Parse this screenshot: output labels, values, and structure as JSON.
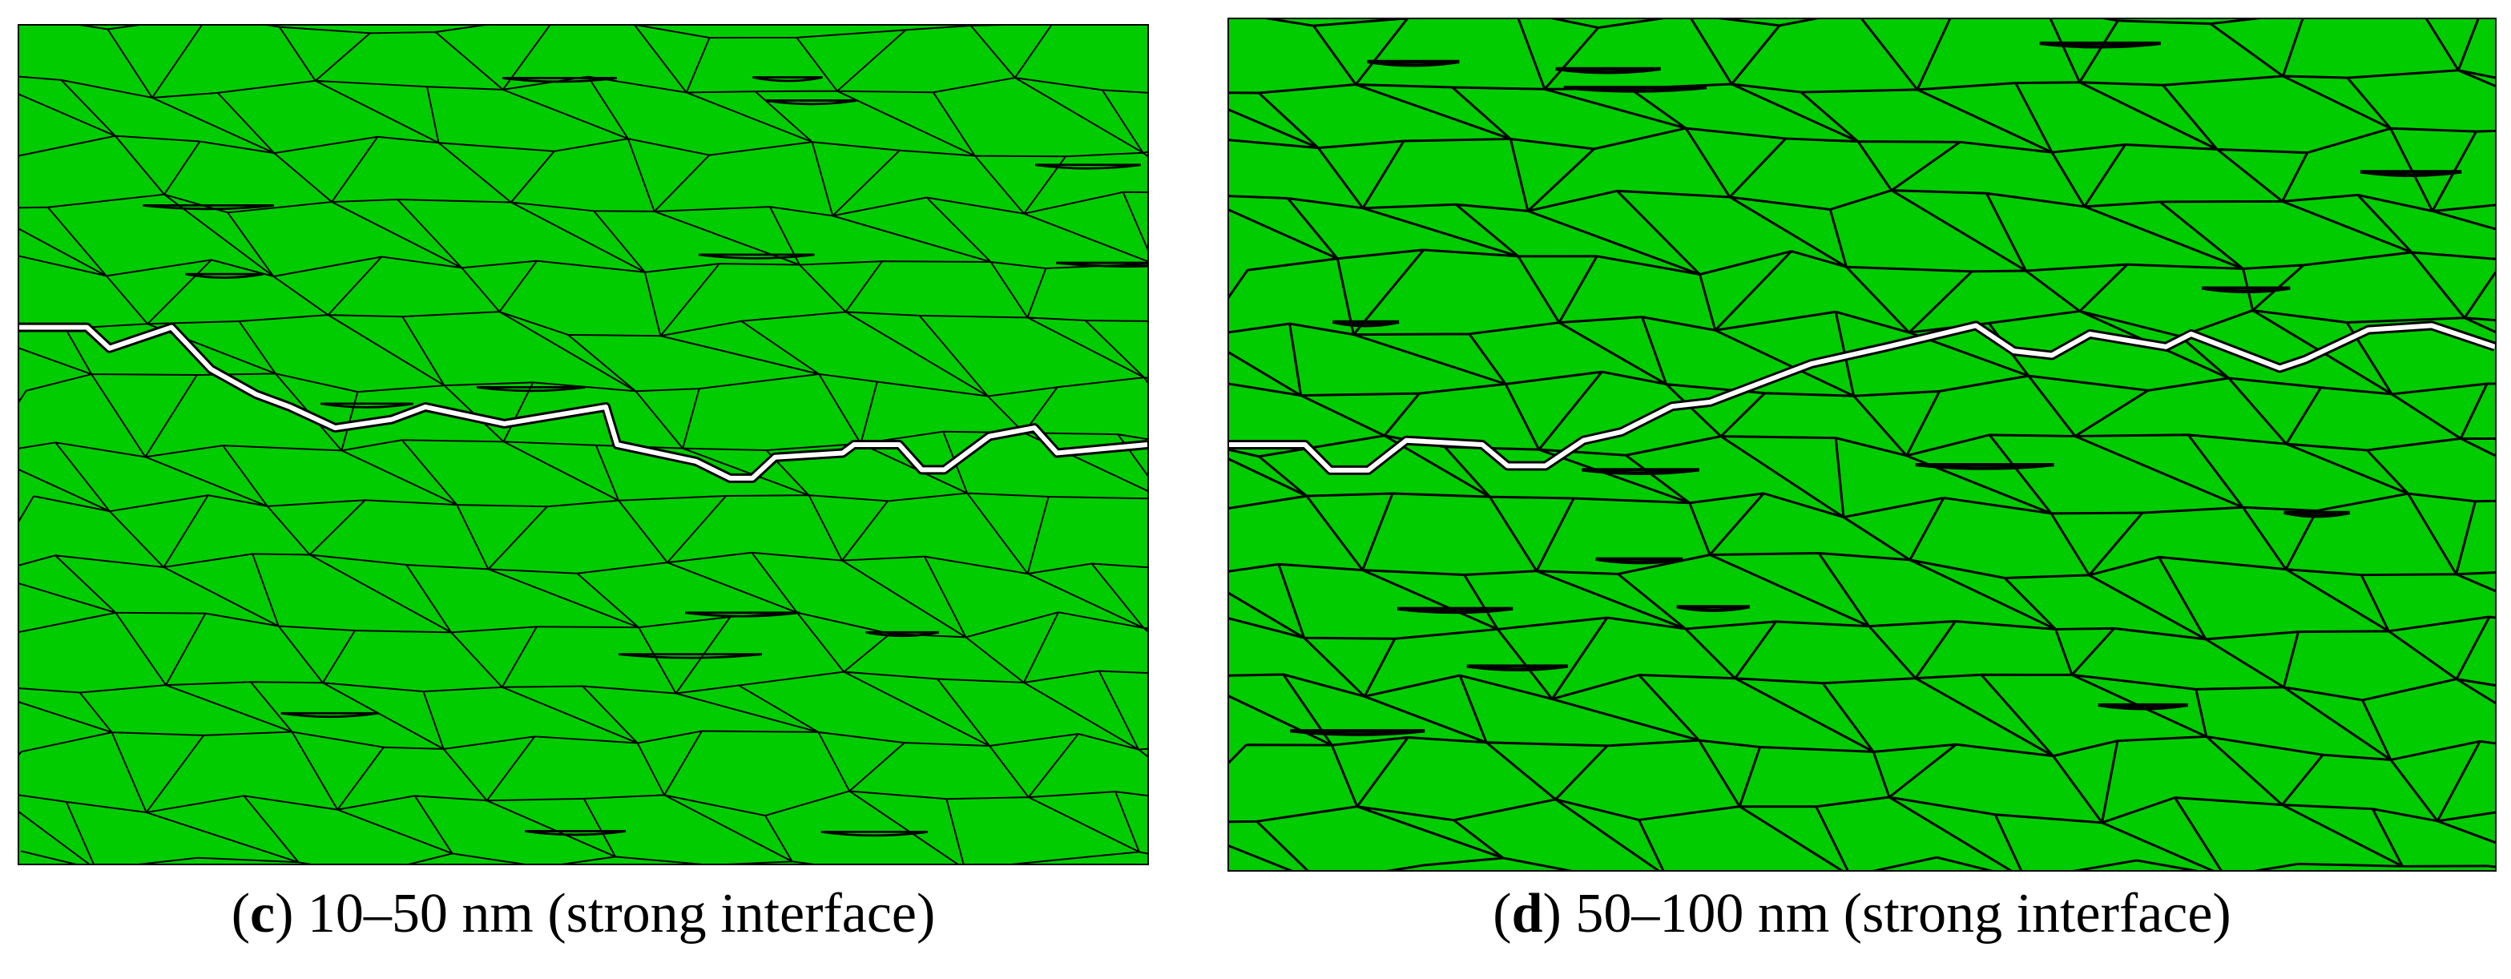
{
  "colors": {
    "grain_fill": "#00cc00",
    "grain_boundary": "#000000",
    "crack": "#ffffff",
    "background": "#ffffff"
  },
  "panels": [
    {
      "id": "c",
      "caption": {
        "open": "(",
        "letter": "c",
        "rest": ") 10–50 nm (strong interface)"
      },
      "grain_cols": 14,
      "grain_rows": 15,
      "crack_points": [
        [
          0,
          0.36
        ],
        [
          0.06,
          0.36
        ],
        [
          0.08,
          0.385
        ],
        [
          0.135,
          0.36
        ],
        [
          0.17,
          0.41
        ],
        [
          0.21,
          0.44
        ],
        [
          0.24,
          0.455
        ],
        [
          0.28,
          0.48
        ],
        [
          0.33,
          0.47
        ],
        [
          0.36,
          0.455
        ],
        [
          0.43,
          0.475
        ],
        [
          0.52,
          0.455
        ],
        [
          0.53,
          0.5
        ],
        [
          0.6,
          0.52
        ],
        [
          0.63,
          0.54
        ],
        [
          0.65,
          0.54
        ],
        [
          0.67,
          0.515
        ],
        [
          0.73,
          0.51
        ],
        [
          0.74,
          0.5
        ],
        [
          0.78,
          0.5
        ],
        [
          0.8,
          0.53
        ],
        [
          0.82,
          0.53
        ],
        [
          0.86,
          0.49
        ],
        [
          0.9,
          0.48
        ],
        [
          0.92,
          0.51
        ],
        [
          1,
          0.5
        ]
      ]
    },
    {
      "id": "d",
      "caption": {
        "open": "(",
        "letter": "d",
        "rest": ") 50–100 nm (strong interface)"
      },
      "grain_cols": 15,
      "grain_rows": 15,
      "crack_points": [
        [
          0,
          0.5
        ],
        [
          0.06,
          0.5
        ],
        [
          0.08,
          0.53
        ],
        [
          0.11,
          0.53
        ],
        [
          0.14,
          0.495
        ],
        [
          0.2,
          0.5
        ],
        [
          0.22,
          0.525
        ],
        [
          0.25,
          0.525
        ],
        [
          0.28,
          0.495
        ],
        [
          0.31,
          0.485
        ],
        [
          0.35,
          0.455
        ],
        [
          0.38,
          0.45
        ],
        [
          0.46,
          0.405
        ],
        [
          0.52,
          0.385
        ],
        [
          0.59,
          0.36
        ],
        [
          0.62,
          0.39
        ],
        [
          0.65,
          0.395
        ],
        [
          0.68,
          0.37
        ],
        [
          0.74,
          0.385
        ],
        [
          0.76,
          0.37
        ],
        [
          0.83,
          0.41
        ],
        [
          0.85,
          0.4
        ],
        [
          0.9,
          0.365
        ],
        [
          0.95,
          0.36
        ],
        [
          1,
          0.385
        ]
      ]
    }
  ]
}
